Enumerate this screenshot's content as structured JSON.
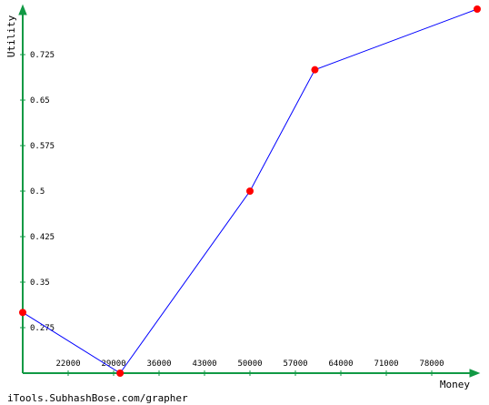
{
  "chart_data": {
    "type": "line",
    "x_label": "Money",
    "y_label": "Utility",
    "footer": "iTools.SubhashBose.com/grapher",
    "x": [
      15000,
      30000,
      50000,
      60000,
      85000
    ],
    "series": [
      {
        "color": "#0000ff",
        "values": [
          0.3,
          0.2,
          0.5,
          0.7,
          0.8
        ]
      }
    ],
    "marker_color": "#ff0000",
    "xlim": [
      15000,
      85000
    ],
    "ylim": [
      0.2,
      0.8
    ],
    "xticks": [
      22000,
      29000,
      36000,
      43000,
      50000,
      57000,
      64000,
      71000,
      78000
    ],
    "yticks": [
      0.275,
      0.35,
      0.425,
      0.5,
      0.575,
      0.65,
      0.725
    ]
  }
}
